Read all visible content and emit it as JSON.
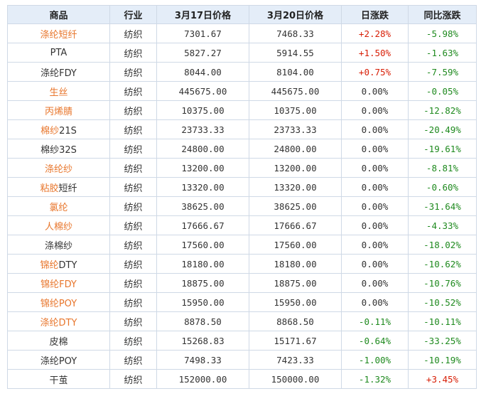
{
  "colors": {
    "header_bg": "#e4edf8",
    "border": "#cfd9e6",
    "link_orange": "#e8762c",
    "up_red": "#d81e06",
    "down_green": "#1f8a1f"
  },
  "table": {
    "headers": [
      "商品",
      "行业",
      "3月17日价格",
      "3月20日价格",
      "日涨跌",
      "同比涨跌"
    ],
    "rows": [
      {
        "name": "涤纶短纤",
        "highlight": "all",
        "industry": "纺织",
        "p1": "7301.67",
        "p2": "7468.33",
        "daily": "+2.28%",
        "yoy": "-5.98%"
      },
      {
        "name": "PTA",
        "highlight": "none",
        "industry": "纺织",
        "p1": "5827.27",
        "p2": "5914.55",
        "daily": "+1.50%",
        "yoy": "-1.63%"
      },
      {
        "name": "涤纶FDY",
        "highlight": "none",
        "industry": "纺织",
        "p1": "8044.00",
        "p2": "8104.00",
        "daily": "+0.75%",
        "yoy": "-7.59%"
      },
      {
        "name": "生丝",
        "highlight": "all",
        "industry": "纺织",
        "p1": "445675.00",
        "p2": "445675.00",
        "daily": "0.00%",
        "yoy": "-0.05%"
      },
      {
        "name": "丙烯腈",
        "highlight": "all",
        "industry": "纺织",
        "p1": "10375.00",
        "p2": "10375.00",
        "daily": "0.00%",
        "yoy": "-12.82%"
      },
      {
        "name": "棉纱21S",
        "highlight": "prefix",
        "prefix": "棉纱",
        "suffix": "21S",
        "industry": "纺织",
        "p1": "23733.33",
        "p2": "23733.33",
        "daily": "0.00%",
        "yoy": "-20.49%"
      },
      {
        "name": "棉纱32S",
        "highlight": "none",
        "industry": "纺织",
        "p1": "24800.00",
        "p2": "24800.00",
        "daily": "0.00%",
        "yoy": "-19.61%"
      },
      {
        "name": "涤纶纱",
        "highlight": "all",
        "industry": "纺织",
        "p1": "13200.00",
        "p2": "13200.00",
        "daily": "0.00%",
        "yoy": "-8.81%"
      },
      {
        "name": "粘胶短纤",
        "highlight": "prefix",
        "prefix": "粘胶",
        "suffix": "短纤",
        "industry": "纺织",
        "p1": "13320.00",
        "p2": "13320.00",
        "daily": "0.00%",
        "yoy": "-0.60%"
      },
      {
        "name": "氯纶",
        "highlight": "all",
        "industry": "纺织",
        "p1": "38625.00",
        "p2": "38625.00",
        "daily": "0.00%",
        "yoy": "-31.64%"
      },
      {
        "name": "人棉纱",
        "highlight": "all",
        "industry": "纺织",
        "p1": "17666.67",
        "p2": "17666.67",
        "daily": "0.00%",
        "yoy": "-4.33%"
      },
      {
        "name": "涤棉纱",
        "highlight": "none",
        "industry": "纺织",
        "p1": "17560.00",
        "p2": "17560.00",
        "daily": "0.00%",
        "yoy": "-18.02%"
      },
      {
        "name": "锦纶DTY",
        "highlight": "prefix",
        "prefix": "锦纶",
        "suffix": "DTY",
        "industry": "纺织",
        "p1": "18180.00",
        "p2": "18180.00",
        "daily": "0.00%",
        "yoy": "-10.62%"
      },
      {
        "name": "锦纶FDY",
        "highlight": "all",
        "industry": "纺织",
        "p1": "18875.00",
        "p2": "18875.00",
        "daily": "0.00%",
        "yoy": "-10.76%"
      },
      {
        "name": "锦纶POY",
        "highlight": "all",
        "industry": "纺织",
        "p1": "15950.00",
        "p2": "15950.00",
        "daily": "0.00%",
        "yoy": "-10.52%"
      },
      {
        "name": "涤纶DTY",
        "highlight": "all",
        "industry": "纺织",
        "p1": "8878.50",
        "p2": "8868.50",
        "daily": "-0.11%",
        "yoy": "-10.11%"
      },
      {
        "name": "皮棉",
        "highlight": "none",
        "industry": "纺织",
        "p1": "15268.83",
        "p2": "15171.67",
        "daily": "-0.64%",
        "yoy": "-33.25%"
      },
      {
        "name": "涤纶POY",
        "highlight": "none",
        "industry": "纺织",
        "p1": "7498.33",
        "p2": "7423.33",
        "daily": "-1.00%",
        "yoy": "-10.19%"
      },
      {
        "name": "干茧",
        "highlight": "none",
        "industry": "纺织",
        "p1": "152000.00",
        "p2": "150000.00",
        "daily": "-1.32%",
        "yoy": "+3.45%"
      }
    ]
  }
}
